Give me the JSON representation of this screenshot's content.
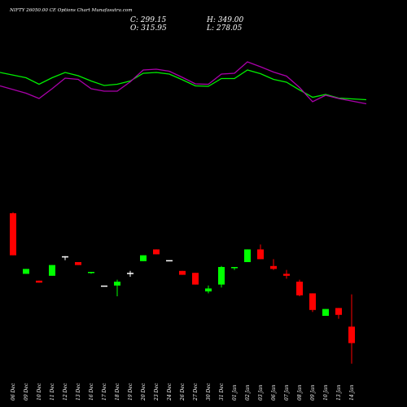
{
  "header": {
    "title": "NIFTY 26050.00 CE Options Chart Munafasutra.com",
    "close_label": "C: 299.15",
    "high_label": "H: 349.00",
    "open_label": "O: 315.95",
    "low_label": "L: 278.05"
  },
  "colors": {
    "background": "#000000",
    "upper_band": "#00ee00",
    "lower_band": "#aa00aa",
    "up_candle": "#00ff00",
    "down_candle": "#ff0000",
    "doji": "#ffffff",
    "text": "#ffffff"
  },
  "chart_data": {
    "type": "candlestick",
    "categories": [
      "06 Dec",
      "09 Dec",
      "10 Dec",
      "11 Dec",
      "12 Dec",
      "13 Dec",
      "16 Dec",
      "17 Dec",
      "18 Dec",
      "19 Dec",
      "20 Dec",
      "23 Dec",
      "24 Dec",
      "26 Dec",
      "27 Dec",
      "30 Dec",
      "31 Dec",
      "01 Jan",
      "02 Jan",
      "03 Jan",
      "06 Jan",
      "07 Jan",
      "08 Jan",
      "09 Jan",
      "10 Jan",
      "13 Jan",
      "14 Jan"
    ],
    "candles": [
      {
        "open": 432,
        "high": 433,
        "low": 389,
        "close": 389
      },
      {
        "open": 370,
        "high": 375,
        "low": 370,
        "close": 375
      },
      {
        "open": 363,
        "high": 363,
        "low": 361,
        "close": 361
      },
      {
        "open": 368,
        "high": 379,
        "low": 368,
        "close": 379
      },
      {
        "open": 388,
        "high": 388,
        "low": 384,
        "close": 388
      },
      {
        "open": 382,
        "high": 382,
        "low": 379,
        "close": 379
      },
      {
        "open": 371,
        "high": 372,
        "low": 370,
        "close": 372
      },
      {
        "open": 358,
        "high": 358,
        "low": 358,
        "close": 358
      },
      {
        "open": 358,
        "high": 364,
        "low": 347,
        "close": 362
      },
      {
        "open": 371,
        "high": 373,
        "low": 367,
        "close": 371
      },
      {
        "open": 383,
        "high": 389,
        "low": 383,
        "close": 389
      },
      {
        "open": 395,
        "high": 395,
        "low": 390,
        "close": 390
      },
      {
        "open": 384,
        "high": 384,
        "low": 384,
        "close": 384
      },
      {
        "open": 373,
        "high": 373,
        "low": 369,
        "close": 369
      },
      {
        "open": 371,
        "high": 371,
        "low": 359,
        "close": 359
      },
      {
        "open": 352,
        "high": 358,
        "low": 350,
        "close": 355
      },
      {
        "open": 359,
        "high": 378,
        "low": 356,
        "close": 377
      },
      {
        "open": 376,
        "high": 377,
        "low": 374,
        "close": 377
      },
      {
        "open": 382,
        "high": 395,
        "low": 382,
        "close": 395
      },
      {
        "open": 395,
        "high": 400,
        "low": 385,
        "close": 385
      },
      {
        "open": 378,
        "high": 385,
        "low": 374,
        "close": 375
      },
      {
        "open": 370,
        "high": 374,
        "low": 365,
        "close": 368
      },
      {
        "open": 362,
        "high": 364,
        "low": 347,
        "close": 348
      },
      {
        "open": 350,
        "high": 350,
        "low": 331,
        "close": 333
      },
      {
        "open": 327,
        "high": 334,
        "low": 327,
        "close": 334
      },
      {
        "open": 335,
        "high": 335,
        "low": 324,
        "close": 328
      },
      {
        "open": 315.95,
        "high": 349,
        "low": 278.05,
        "close": 299.15
      }
    ],
    "price_scale": {
      "top_value": 432,
      "top_y": 262,
      "bottom_value": 327,
      "bottom_y": 388
    },
    "upper_band": [
      598,
      585,
      569,
      585,
      598,
      590,
      577,
      566,
      569,
      577,
      596,
      598,
      594,
      580,
      565,
      564,
      583,
      583,
      604,
      595,
      581,
      574,
      555,
      537,
      544,
      535,
      531
    ],
    "lower_band": [
      565,
      547,
      534,
      558,
      584,
      581,
      558,
      552,
      552,
      575,
      604,
      606,
      601,
      586,
      570,
      569,
      594,
      596,
      624,
      612,
      599,
      589,
      561,
      526,
      542,
      534,
      521
    ]
  }
}
